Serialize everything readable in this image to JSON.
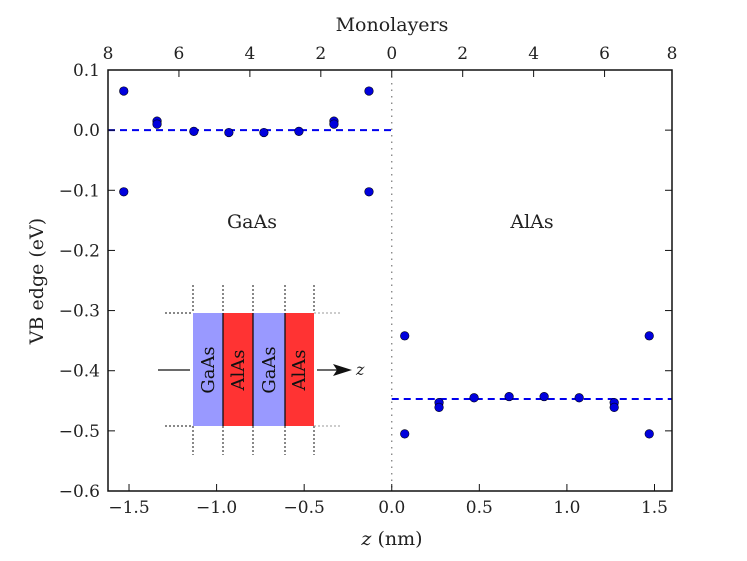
{
  "chart_data": {
    "type": "scatter",
    "xlabel": "z (nm)",
    "ylabel": "VB edge (eV)",
    "top_xlabel": "Monolayers",
    "xlim": [
      -1.62,
      1.6
    ],
    "ylim": [
      -0.6,
      0.1
    ],
    "xticks": [
      -1.5,
      -1.0,
      -0.5,
      0.0,
      0.5,
      1.0,
      1.5
    ],
    "xtick_labels": [
      "−1.5",
      "−1.0",
      "−0.5",
      "0.0",
      "0.5",
      "1.0",
      "1.5"
    ],
    "yticks": [
      0.1,
      0.0,
      -0.1,
      -0.2,
      -0.3,
      -0.4,
      -0.5,
      -0.6
    ],
    "ytick_labels": [
      "0.1",
      "0.0",
      "−0.1",
      "−0.2",
      "−0.3",
      "−0.4",
      "−0.5",
      "−0.6"
    ],
    "top_ticks_monolayers": [
      8,
      6,
      4,
      2,
      0,
      2,
      4,
      6,
      8
    ],
    "top_tick_labels": [
      "8",
      "6",
      "4",
      "2",
      "0",
      "2",
      "4",
      "6",
      "8"
    ],
    "nm_per_monolayer": 0.2025,
    "grid": false,
    "marker_color": "#0000dd",
    "line_color": "#0000ee",
    "points": {
      "x": [
        -1.53,
        -1.53,
        -1.34,
        -1.34,
        -1.13,
        -0.93,
        -0.73,
        -0.53,
        -0.33,
        -0.33,
        -0.13,
        -0.13,
        0.074,
        0.074,
        0.27,
        0.27,
        0.47,
        0.67,
        0.87,
        1.07,
        1.27,
        1.27,
        1.47,
        1.47
      ],
      "y": [
        0.065,
        -0.1025,
        0.015,
        0.01,
        -0.002,
        -0.004,
        -0.004,
        -0.002,
        0.015,
        0.01,
        0.065,
        -0.1025,
        -0.342,
        -0.505,
        -0.453,
        -0.461,
        -0.445,
        -0.443,
        -0.443,
        -0.445,
        -0.453,
        -0.461,
        -0.342,
        -0.505
      ]
    },
    "reference_lines": [
      {
        "y": 0.0,
        "x_range": [
          -1.62,
          0.0
        ],
        "style": "dashed"
      },
      {
        "y": -0.447,
        "x_range": [
          0.0,
          1.6
        ],
        "style": "dashed"
      }
    ],
    "interface_line": {
      "x": 0.0,
      "style": "dotted"
    },
    "annotations": {
      "left_region": "GaAs",
      "right_region": "AlAs"
    },
    "inset": {
      "layers": [
        "GaAs",
        "AlAs",
        "GaAs",
        "AlAs"
      ],
      "colors": {
        "GaAs": "#9999ff",
        "AlAs": "#ff3333"
      },
      "axis_label": "z"
    }
  }
}
